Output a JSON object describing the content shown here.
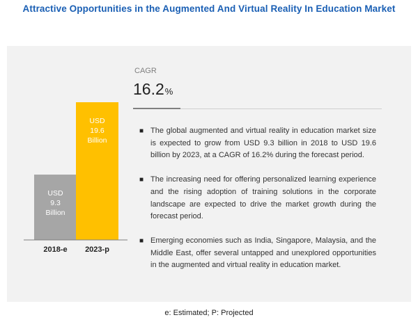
{
  "title": "Attractive Opportunities in the Augmented And Virtual Reality  In Education Market",
  "cagr": {
    "label": "CAGR",
    "value": "16.2",
    "unit": "%"
  },
  "bullets": [
    "The global augmented and virtual reality in education market size is expected to grow from USD 9.3 billion in 2018 to USD 19.6 billion by 2023, at a CAGR of 16.2% during the forecast period.",
    "The increasing need for offering personalized learning experience and the rising adoption of training solutions in the corporate landscape are expected to drive the market growth during the forecast period.",
    "Emerging economies such as India, Singapore, Malaysia, and the Middle East, offer several untapped and unexplored opportunities in the augmented and virtual reality in education market."
  ],
  "footnote": "e: Estimated; P: Projected",
  "colors": {
    "title": "#1a5fb4",
    "bar_2018": "#a6a6a6",
    "bar_2023": "#ffc000",
    "panel": "#f2f2f2"
  },
  "chart_data": {
    "type": "bar",
    "categories": [
      "2018-e",
      "2023-p"
    ],
    "values": [
      9.3,
      19.6
    ],
    "data_labels": [
      [
        "USD",
        "9.3",
        "Billion"
      ],
      [
        "USD",
        "19.6",
        "Billion"
      ]
    ],
    "title": "",
    "xlabel": "",
    "ylabel": "",
    "ylim": [
      0,
      19.6
    ],
    "grid": false,
    "legend": "none"
  }
}
